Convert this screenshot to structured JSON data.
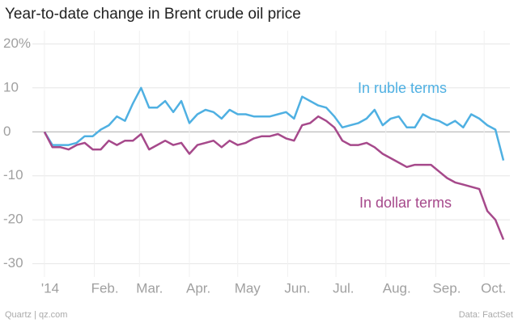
{
  "chart_data": {
    "type": "line",
    "title": "Year-to-date change in Brent crude oil price",
    "source": "Data: FactSet",
    "credit": "Quartz | qz.com",
    "x": [
      0,
      5,
      10,
      15,
      20,
      25,
      30,
      35,
      40,
      45,
      50,
      55,
      60,
      65,
      70,
      75,
      80,
      85,
      90,
      95,
      100,
      105,
      110,
      115,
      120,
      125,
      130,
      135,
      140,
      145,
      150,
      155,
      160,
      165,
      170,
      175,
      180,
      185,
      190,
      195,
      200,
      205,
      210,
      215,
      220,
      225,
      230,
      235,
      240,
      245,
      250,
      255,
      260,
      265,
      270,
      275,
      280,
      285
    ],
    "xlim": [
      -10,
      289
    ],
    "xticks": [
      {
        "value": 0,
        "label": "'14"
      },
      {
        "value": 31,
        "label": "Feb."
      },
      {
        "value": 59,
        "label": "Mar."
      },
      {
        "value": 90,
        "label": "Apr."
      },
      {
        "value": 120,
        "label": "May"
      },
      {
        "value": 151,
        "label": "Jun."
      },
      {
        "value": 181,
        "label": "Jul."
      },
      {
        "value": 212,
        "label": "Aug."
      },
      {
        "value": 243,
        "label": "Sep."
      },
      {
        "value": 273,
        "label": "Oct."
      }
    ],
    "ylim": [
      -33,
      23
    ],
    "yticks": [
      {
        "value": 20,
        "label": "20%"
      },
      10,
      0,
      -10,
      -20,
      -30
    ],
    "grid": true,
    "series": [
      {
        "name": "In ruble terms",
        "color": "#4fb0e2",
        "values": [
          0,
          -3,
          -3,
          -3,
          -2.5,
          -1,
          -1,
          0.5,
          1.5,
          3.5,
          2.5,
          6.5,
          10,
          5.5,
          5.5,
          7,
          4.5,
          7,
          2,
          4,
          5,
          4.5,
          3,
          5,
          4,
          4,
          3.5,
          3.5,
          3.5,
          4,
          4.5,
          3,
          8,
          7,
          6,
          5.5,
          3.5,
          1,
          1.5,
          2,
          3,
          5,
          1.5,
          3,
          3.5,
          1,
          1,
          4,
          3,
          2.5,
          1.5,
          2.5,
          1,
          4,
          3,
          1.5,
          0.5,
          -6.5
        ]
      },
      {
        "name": "In dollar terms",
        "color": "#a6498b",
        "values": [
          0,
          -3.5,
          -3.5,
          -4,
          -3,
          -2.5,
          -4,
          -4,
          -2,
          -3,
          -2,
          -2,
          -0.5,
          -4,
          -3,
          -2,
          -3,
          -2.5,
          -5,
          -3,
          -2.5,
          -2,
          -3.5,
          -2,
          -3,
          -2.5,
          -1.5,
          -1,
          -1,
          -0.5,
          -1.5,
          -2,
          1.5,
          2,
          3.5,
          2.5,
          1,
          -2,
          -3,
          -3,
          -2.5,
          -3.5,
          -5,
          -6,
          -7,
          -8,
          -7.5,
          -7.5,
          -7.5,
          -9,
          -10.5,
          -11.5,
          -12,
          -12.5,
          -13,
          -18,
          -20,
          -24.5
        ]
      }
    ]
  }
}
